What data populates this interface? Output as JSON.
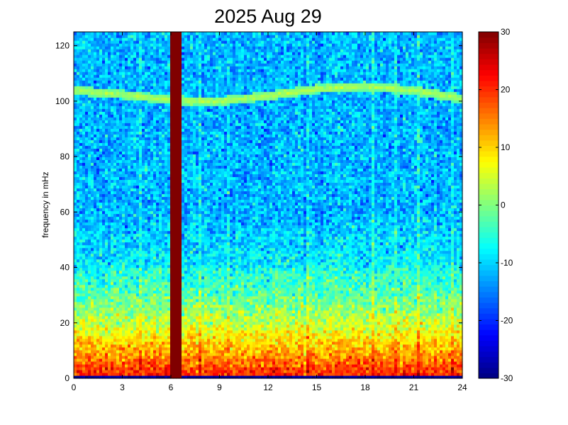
{
  "chart_data": {
    "type": "heatmap",
    "title": "2025 Aug 29",
    "xlabel": "",
    "ylabel": "frequency in mHz",
    "xlim": [
      0,
      24
    ],
    "ylim": [
      0,
      125
    ],
    "x_ticks": [
      0,
      3,
      6,
      9,
      12,
      15,
      18,
      21,
      24
    ],
    "y_ticks": [
      0,
      20,
      40,
      60,
      80,
      100,
      120
    ],
    "colorbar": {
      "range": [
        -30,
        30
      ],
      "ticks": [
        -30,
        -20,
        -10,
        0,
        10,
        20,
        30
      ],
      "colormap": "jet"
    },
    "features": {
      "background_level_high_freq": -12,
      "low_freq_band": {
        "freq_range": [
          0,
          40
        ],
        "level_at_0": 22,
        "level_at_40": -6
      },
      "strong_event": {
        "time_start": 5.9,
        "time_end": 6.7,
        "level": 30
      },
      "narrowband_line": {
        "curve_time": [
          0,
          3,
          6,
          9,
          12,
          15,
          18,
          21,
          24
        ],
        "curve_freq": [
          104,
          102.5,
          100.5,
          100,
          102,
          104.5,
          105.5,
          104,
          101
        ],
        "level": 3
      }
    }
  }
}
